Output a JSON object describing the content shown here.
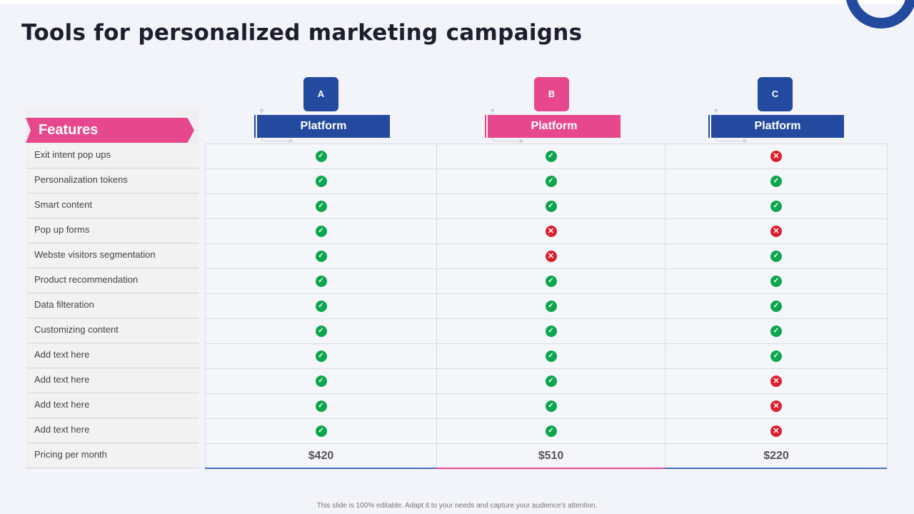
{
  "title": "Tools for personalized marketing campaigns",
  "features_label": "Features",
  "features": [
    "Exit intent pop ups",
    "Personalization tokens",
    "Smart content",
    "Pop up forms",
    "Webste visitors segmentation",
    "Product recommendation",
    "Data filteration",
    "Customizing content",
    "Add text here",
    "Add text here",
    "Add text here",
    "Add text here",
    "Pricing per month"
  ],
  "platforms": [
    {
      "letter": "A",
      "name": "Platform",
      "color": "#234a9e",
      "price": "$420",
      "support": [
        true,
        true,
        true,
        true,
        true,
        true,
        true,
        true,
        true,
        true,
        true,
        true
      ]
    },
    {
      "letter": "B",
      "name": "Platform",
      "color": "#e7488d",
      "price": "$510",
      "support": [
        true,
        true,
        true,
        false,
        false,
        true,
        true,
        true,
        true,
        true,
        true,
        true
      ]
    },
    {
      "letter": "C",
      "name": "Platform",
      "color": "#234a9e",
      "price": "$220",
      "support": [
        false,
        true,
        true,
        false,
        true,
        true,
        true,
        true,
        true,
        false,
        false,
        false
      ]
    }
  ],
  "icons": {
    "yes": "check-circle-icon",
    "no": "x-circle-icon"
  },
  "status_colors": {
    "yes": "#0ea54f",
    "no": "#d9202c"
  },
  "footer": "This slide is 100% editable. Adapt it to your needs and capture your audience's attention."
}
